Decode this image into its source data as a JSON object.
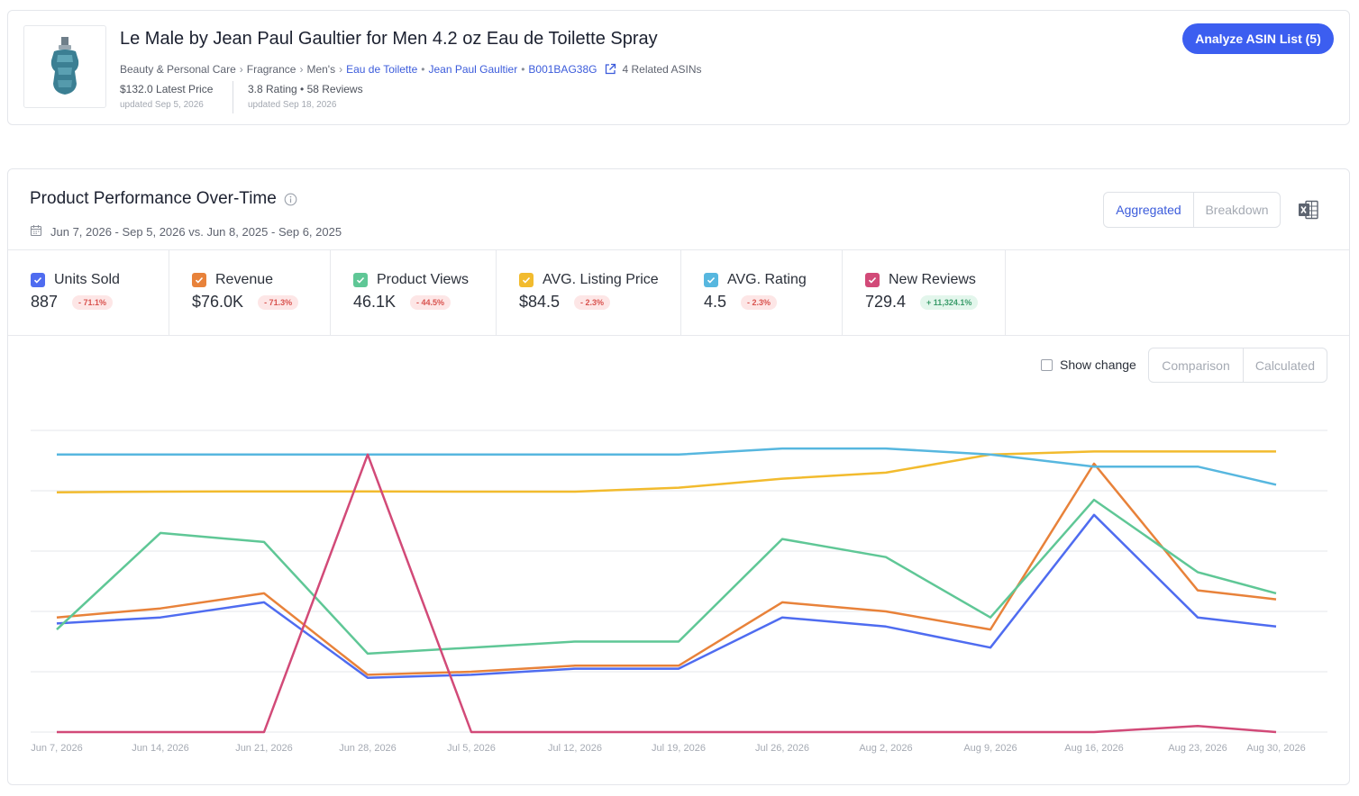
{
  "product": {
    "title": "Le Male by Jean Paul Gaultier for Men 4.2 oz Eau de Toilette Spray",
    "breadcrumbs": [
      "Beauty & Personal Care",
      "Fragrance",
      "Men's"
    ],
    "category_link": "Eau de Toilette",
    "brand_link": "Jean Paul Gaultier",
    "asin": "B001BAG38G",
    "related": "4 Related ASINs",
    "price": "$132.0 Latest Price",
    "price_updated": "updated Sep 5, 2026",
    "rating": "3.8 Rating • 58 Reviews",
    "rating_updated": "updated Sep 18, 2026",
    "analyze_button": "Analyze ASIN List (5)"
  },
  "performance": {
    "title": "Product Performance Over-Time",
    "date_range": "Jun 7, 2026 - Sep 5, 2026 vs. Jun 8, 2025 - Sep 6, 2025",
    "view_options": [
      "Aggregated",
      "Breakdown"
    ],
    "active_view": "Aggregated",
    "show_change_label": "Show change",
    "calc_options": [
      "Comparison",
      "Calculated"
    ],
    "metrics": [
      {
        "label": "Units Sold",
        "value": "887",
        "change": "- 71.1%",
        "trend": "neg",
        "color": "#4f6cf0"
      },
      {
        "label": "Revenue",
        "value": "$76.0K",
        "change": "- 71.3%",
        "trend": "neg",
        "color": "#e8823a"
      },
      {
        "label": "Product Views",
        "value": "46.1K",
        "change": "- 44.5%",
        "trend": "neg",
        "color": "#5fc796"
      },
      {
        "label": "AVG. Listing Price",
        "value": "$84.5",
        "change": "- 2.3%",
        "trend": "neg",
        "color": "#f2bb2e"
      },
      {
        "label": "AVG. Rating",
        "value": "4.5",
        "change": "- 2.3%",
        "trend": "neg",
        "color": "#57b7df"
      },
      {
        "label": "New Reviews",
        "value": "729.4",
        "change": "+ 11,324.1%",
        "trend": "pos",
        "color": "#d24a78"
      }
    ]
  },
  "chart_data": {
    "type": "line",
    "x": [
      "Jun 7, 2026",
      "Jun 14, 2026",
      "Jun 21, 2026",
      "Jun 28, 2026",
      "Jul 5, 2026",
      "Jul 12, 2026",
      "Jul 19, 2026",
      "Jul 26, 2026",
      "Aug 2, 2026",
      "Aug 9, 2026",
      "Aug 16, 2026",
      "Aug 23, 2026",
      "Aug 30, 2026"
    ],
    "normalized": true,
    "ylim": [
      0,
      100
    ],
    "grid": true,
    "series": [
      {
        "name": "Units Sold",
        "color": "#4f6cf0",
        "values": [
          36,
          38,
          43,
          18,
          19,
          21,
          21,
          38,
          35,
          28,
          72,
          38,
          35
        ]
      },
      {
        "name": "Revenue",
        "color": "#e8823a",
        "values": [
          38,
          41,
          46,
          19,
          20,
          22,
          22,
          43,
          40,
          34,
          89,
          47,
          44
        ]
      },
      {
        "name": "Product Views",
        "color": "#5fc796",
        "values": [
          34,
          66,
          63,
          26,
          28,
          30,
          30,
          64,
          58,
          38,
          77,
          53,
          46
        ]
      },
      {
        "name": "AVG. Listing Price",
        "color": "#f2bb2e",
        "values": [
          79.5,
          79.7,
          79.8,
          79.8,
          79.7,
          79.7,
          81,
          84,
          86,
          92,
          93,
          93,
          93
        ]
      },
      {
        "name": "AVG. Rating",
        "color": "#57b7df",
        "values": [
          92,
          92,
          92,
          92,
          92,
          92,
          92,
          94,
          94,
          92,
          88,
          88,
          82
        ]
      },
      {
        "name": "New Reviews",
        "color": "#d24a78",
        "values": [
          0,
          0,
          0,
          92,
          0,
          0,
          0,
          0,
          0,
          0,
          0,
          2,
          0
        ]
      }
    ]
  }
}
